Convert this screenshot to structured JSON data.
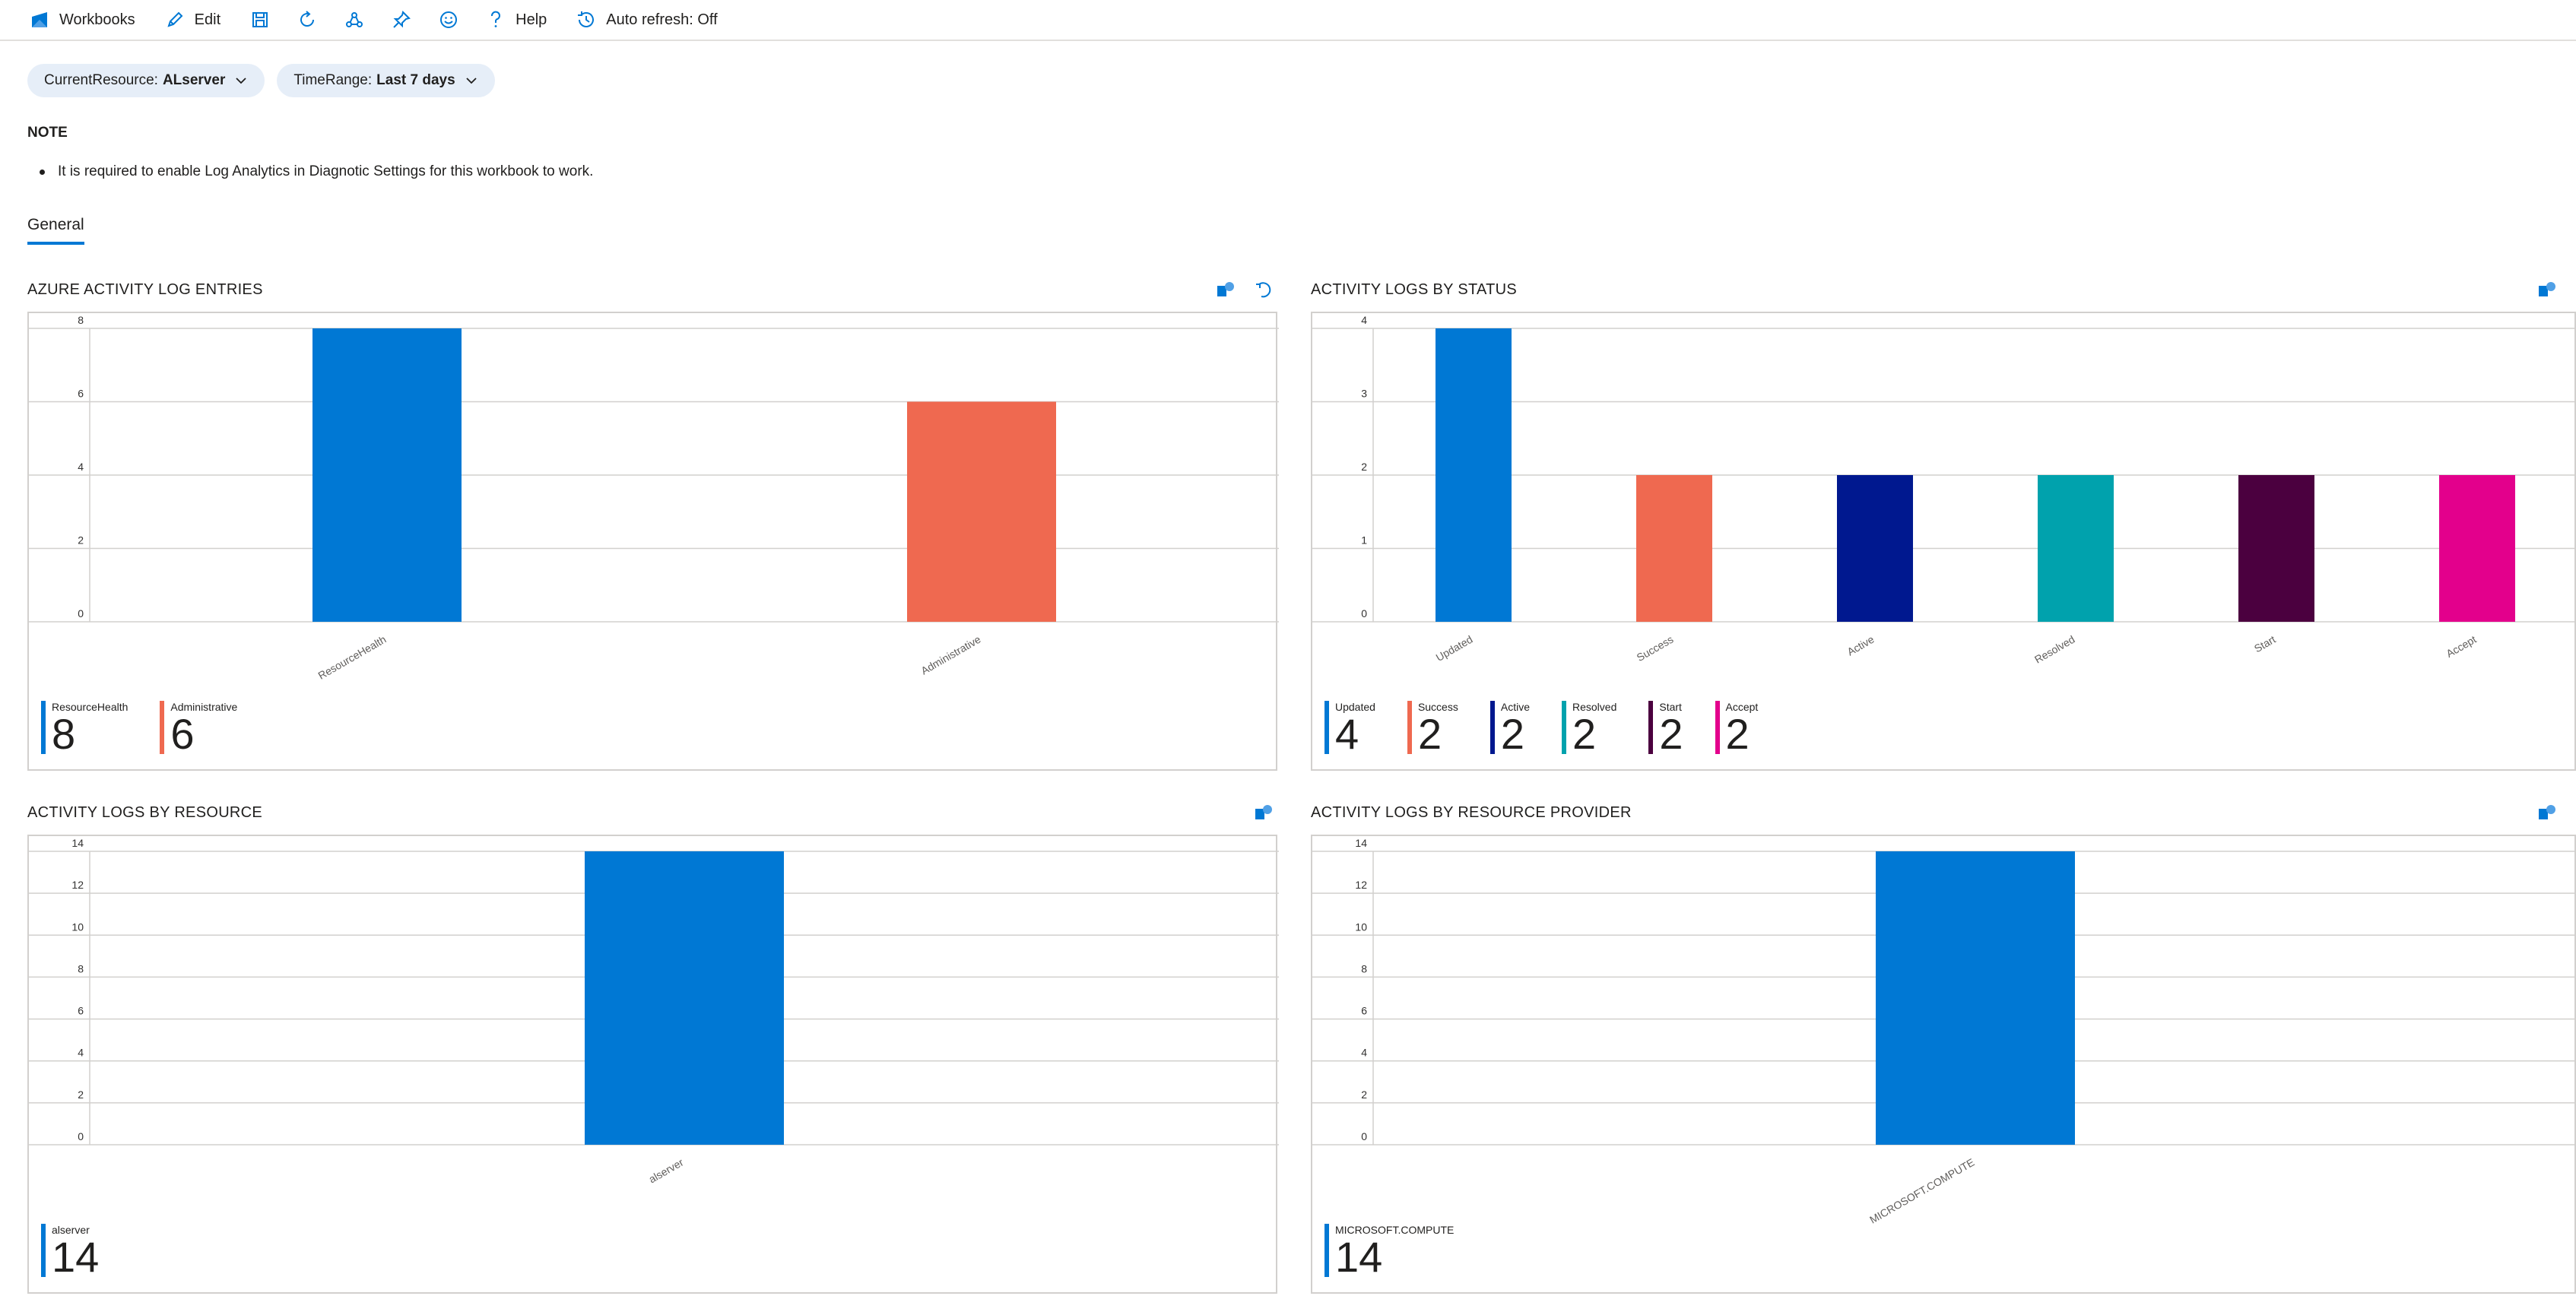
{
  "toolbar": {
    "workbooks_label": "Workbooks",
    "edit_label": "Edit",
    "help_label": "Help",
    "auto_refresh_label": "Auto refresh: Off"
  },
  "params": {
    "current_resource_label": "CurrentResource:",
    "current_resource_value": "ALserver",
    "time_range_label": "TimeRange:",
    "time_range_value": "Last 7 days"
  },
  "note": {
    "heading": "NOTE",
    "item": "It is required to enable Log Analytics in Diagnotic Settings for this workbook to work."
  },
  "tabs": {
    "general": "General"
  },
  "colors": {
    "accent": "#0078d4",
    "grid": "#d2d0ce"
  },
  "chart_data": [
    {
      "id": "entries",
      "type": "bar",
      "title": "AZURE ACTIVITY LOG ENTRIES",
      "categories": [
        "ResourceHealth",
        "Administrative"
      ],
      "values": [
        8,
        6
      ],
      "colors": [
        "#0078d4",
        "#ef6950"
      ],
      "yticks": [
        0,
        2,
        4,
        6,
        8
      ],
      "ylim": [
        0,
        8
      ],
      "grid": true
    },
    {
      "id": "status",
      "type": "bar",
      "title": "ACTIVITY LOGS BY STATUS",
      "categories": [
        "Updated",
        "Success",
        "Active",
        "Resolved",
        "Start",
        "Accept"
      ],
      "values": [
        4,
        2,
        2,
        2,
        2,
        2
      ],
      "colors": [
        "#0078d4",
        "#ef6950",
        "#00188f",
        "#00a2ad",
        "#4b003f",
        "#e3008c"
      ],
      "yticks": [
        0,
        1,
        2,
        3,
        4
      ],
      "ylim": [
        0,
        4
      ],
      "grid": true
    },
    {
      "id": "resource",
      "type": "bar",
      "title": "ACTIVITY LOGS BY RESOURCE",
      "categories": [
        "alserver"
      ],
      "values": [
        14
      ],
      "colors": [
        "#0078d4"
      ],
      "yticks": [
        0,
        2,
        4,
        6,
        8,
        10,
        12,
        14
      ],
      "ylim": [
        0,
        14
      ],
      "grid": true
    },
    {
      "id": "provider",
      "type": "bar",
      "title": "ACTIVITY LOGS BY RESOURCE PROVIDER",
      "categories": [
        "MICROSOFT.COMPUTE"
      ],
      "values": [
        14
      ],
      "colors": [
        "#0078d4"
      ],
      "yticks": [
        0,
        2,
        4,
        6,
        8,
        10,
        12,
        14
      ],
      "ylim": [
        0,
        14
      ],
      "grid": true
    }
  ]
}
